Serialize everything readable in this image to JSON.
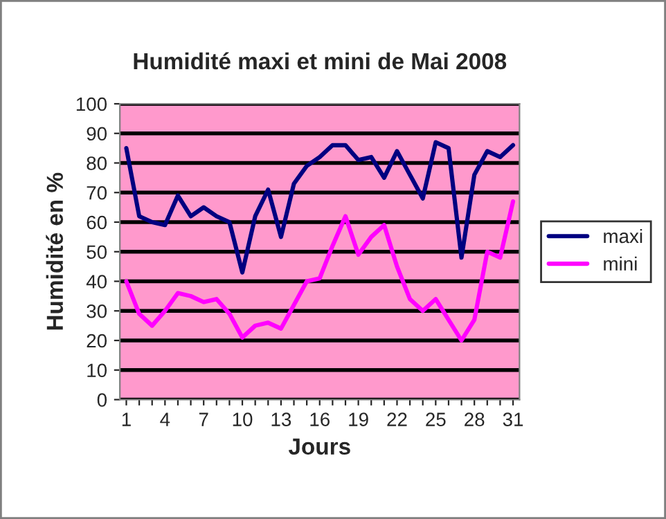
{
  "chart_data": {
    "type": "line",
    "title": "Humidité maxi et mini de Mai 2008",
    "xlabel": "Jours",
    "ylabel": "Humidité en %",
    "categories": [
      "1",
      null,
      null,
      "4",
      null,
      null,
      "7",
      null,
      null,
      "10",
      null,
      null,
      "13",
      null,
      null,
      "16",
      null,
      null,
      "19",
      null,
      null,
      "22",
      null,
      null,
      "25",
      null,
      null,
      "28",
      null,
      null,
      "31"
    ],
    "series": [
      {
        "name": "maxi",
        "color": "#000080",
        "values": [
          85,
          62,
          60,
          59,
          69,
          62,
          65,
          62,
          60,
          43,
          62,
          71,
          55,
          73,
          79,
          82,
          86,
          86,
          81,
          82,
          75,
          84,
          76,
          68,
          87,
          85,
          48,
          76,
          84,
          82,
          86
        ]
      },
      {
        "name": "mini",
        "color": "#ff00ff",
        "values": [
          40,
          29,
          25,
          30,
          36,
          35,
          33,
          34,
          29,
          21,
          25,
          26,
          24,
          32,
          40,
          41,
          52,
          62,
          49,
          55,
          59,
          45,
          34,
          30,
          34,
          27,
          20,
          27,
          50,
          48,
          67
        ]
      }
    ],
    "ylim": [
      0,
      100
    ],
    "yticks": [
      0,
      10,
      20,
      30,
      40,
      50,
      60,
      70,
      80,
      90,
      100
    ],
    "grid": "y",
    "legend": "right",
    "marker": "none",
    "line_style": "solid"
  }
}
